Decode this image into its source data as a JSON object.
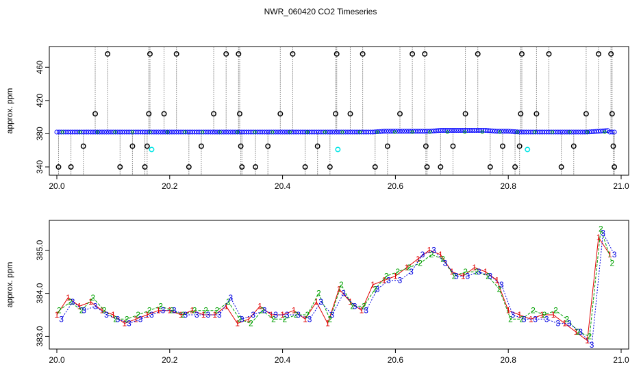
{
  "title": "NWR_060420  CO2 Timeseries",
  "chart_data": [
    {
      "type": "scatter",
      "ylabel": "approx. ppm",
      "xlim": [
        20.0,
        21.0
      ],
      "ylim": [
        335,
        480
      ],
      "xticks": [
        "20.0",
        "20.2",
        "20.4",
        "20.6",
        "20.8",
        "21.0"
      ],
      "yticks": [
        "340",
        "380",
        "420",
        "460"
      ],
      "baseline": 382,
      "series": [
        {
          "color": "#0000ff",
          "marker": "circle",
          "points": [
            [
              20.0,
              382
            ],
            [
              20.02,
              382
            ],
            [
              20.04,
              382
            ],
            [
              20.06,
              382
            ],
            [
              20.08,
              382
            ],
            [
              20.1,
              382
            ],
            [
              20.12,
              382
            ],
            [
              20.14,
              382
            ],
            [
              20.16,
              382
            ],
            [
              20.18,
              382
            ],
            [
              20.2,
              382
            ],
            [
              20.22,
              382
            ],
            [
              20.24,
              382
            ],
            [
              20.26,
              382
            ],
            [
              20.28,
              382
            ],
            [
              20.3,
              382
            ],
            [
              20.32,
              382
            ],
            [
              20.34,
              382
            ],
            [
              20.36,
              382
            ],
            [
              20.38,
              382
            ],
            [
              20.4,
              382
            ],
            [
              20.42,
              382
            ],
            [
              20.44,
              382
            ],
            [
              20.46,
              382
            ],
            [
              20.48,
              382
            ],
            [
              20.5,
              382
            ],
            [
              20.52,
              382
            ],
            [
              20.54,
              382
            ],
            [
              20.56,
              382
            ],
            [
              20.58,
              383
            ],
            [
              20.6,
              383
            ],
            [
              20.62,
              383
            ],
            [
              20.64,
              383
            ],
            [
              20.66,
              383
            ],
            [
              20.68,
              384
            ],
            [
              20.7,
              384
            ],
            [
              20.72,
              384
            ],
            [
              20.74,
              384
            ],
            [
              20.76,
              384
            ],
            [
              20.78,
              383
            ],
            [
              20.8,
              383
            ],
            [
              20.82,
              382
            ],
            [
              20.84,
              382
            ],
            [
              20.86,
              382
            ],
            [
              20.88,
              382
            ],
            [
              20.9,
              382
            ],
            [
              20.92,
              382
            ],
            [
              20.94,
              382
            ],
            [
              20.96,
              383
            ],
            [
              20.98,
              384
            ]
          ]
        },
        {
          "color": "#000000",
          "marker": "circle",
          "points": [
            [
              20.003,
              340
            ],
            [
              20.025,
              340
            ],
            [
              20.047,
              365
            ],
            [
              20.068,
              404
            ],
            [
              20.09,
              476
            ],
            [
              20.112,
              340
            ],
            [
              20.134,
              365
            ],
            [
              20.156,
              340
            ],
            [
              20.16,
              365
            ],
            [
              20.163,
              404
            ],
            [
              20.165,
              476
            ],
            [
              20.19,
              404
            ],
            [
              20.212,
              476
            ],
            [
              20.234,
              340
            ],
            [
              20.256,
              365
            ],
            [
              20.278,
              404
            ],
            [
              20.3,
              476
            ],
            [
              20.322,
              476
            ],
            [
              20.324,
              404
            ],
            [
              20.326,
              365
            ],
            [
              20.328,
              340
            ],
            [
              20.352,
              340
            ],
            [
              20.374,
              365
            ],
            [
              20.396,
              404
            ],
            [
              20.418,
              476
            ],
            [
              20.44,
              340
            ],
            [
              20.462,
              365
            ],
            [
              20.484,
              340
            ],
            [
              20.494,
              404
            ],
            [
              20.496,
              476
            ],
            [
              20.52,
              404
            ],
            [
              20.542,
              476
            ],
            [
              20.564,
              340
            ],
            [
              20.586,
              365
            ],
            [
              20.608,
              404
            ],
            [
              20.63,
              476
            ],
            [
              20.652,
              476
            ],
            [
              20.654,
              365
            ],
            [
              20.656,
              340
            ],
            [
              20.68,
              340
            ],
            [
              20.702,
              365
            ],
            [
              20.724,
              404
            ],
            [
              20.746,
              476
            ],
            [
              20.768,
              340
            ],
            [
              20.79,
              365
            ],
            [
              20.812,
              340
            ],
            [
              20.82,
              365
            ],
            [
              20.822,
              404
            ],
            [
              20.824,
              476
            ],
            [
              20.85,
              404
            ],
            [
              20.872,
              476
            ],
            [
              20.894,
              340
            ],
            [
              20.916,
              365
            ],
            [
              20.938,
              404
            ],
            [
              20.96,
              476
            ],
            [
              20.982,
              476
            ],
            [
              20.984,
              404
            ],
            [
              20.986,
              365
            ],
            [
              20.988,
              340
            ]
          ]
        },
        {
          "color": "#00e5e5",
          "marker": "circle",
          "points": [
            [
              20.168,
              361
            ],
            [
              20.498,
              361
            ],
            [
              20.834,
              361
            ]
          ]
        }
      ]
    },
    {
      "type": "line",
      "ylabel": "approx. ppm",
      "xlim": [
        20.0,
        21.0
      ],
      "ylim": [
        382.8,
        385.6
      ],
      "xticks": [
        "20.0",
        "20.2",
        "20.4",
        "20.6",
        "20.8",
        "21.0"
      ],
      "yticks": [
        "383.0",
        "384.0",
        "385.0"
      ],
      "series": [
        {
          "name": "1",
          "color": "#e00000",
          "x": [
            20.0,
            20.02,
            20.04,
            20.06,
            20.08,
            20.1,
            20.12,
            20.14,
            20.16,
            20.18,
            20.2,
            20.22,
            20.24,
            20.26,
            20.28,
            20.3,
            20.32,
            20.34,
            20.36,
            20.38,
            20.4,
            20.42,
            20.44,
            20.46,
            20.48,
            20.5,
            20.52,
            20.54,
            20.56,
            20.58,
            20.6,
            20.62,
            20.64,
            20.66,
            20.68,
            20.7,
            20.72,
            20.74,
            20.76,
            20.78,
            20.8,
            20.82,
            20.84,
            20.86,
            20.88,
            20.9,
            20.92,
            20.94,
            20.96,
            20.98
          ],
          "values": [
            383.5,
            383.9,
            383.7,
            383.8,
            383.6,
            383.5,
            383.3,
            383.4,
            383.5,
            383.6,
            383.6,
            383.5,
            383.6,
            383.5,
            383.5,
            383.7,
            383.3,
            383.4,
            383.7,
            383.5,
            383.5,
            383.6,
            383.4,
            383.8,
            383.3,
            384.1,
            383.8,
            383.6,
            384.2,
            384.3,
            384.4,
            384.6,
            384.8,
            385.0,
            384.9,
            384.5,
            384.4,
            384.6,
            384.5,
            384.3,
            383.6,
            383.5,
            383.4,
            383.5,
            383.5,
            383.3,
            383.1,
            382.9,
            385.3,
            384.9
          ]
        },
        {
          "name": "2",
          "color": "#00a000",
          "x": [
            20.004,
            20.024,
            20.044,
            20.064,
            20.084,
            20.104,
            20.124,
            20.144,
            20.164,
            20.184,
            20.204,
            20.224,
            20.244,
            20.264,
            20.284,
            20.304,
            20.324,
            20.344,
            20.364,
            20.384,
            20.404,
            20.424,
            20.444,
            20.464,
            20.484,
            20.504,
            20.524,
            20.544,
            20.564,
            20.584,
            20.604,
            20.624,
            20.644,
            20.664,
            20.684,
            20.704,
            20.724,
            20.744,
            20.764,
            20.784,
            20.804,
            20.824,
            20.844,
            20.864,
            20.884,
            20.904,
            20.924,
            20.944,
            20.964,
            20.984
          ],
          "values": [
            383.6,
            383.8,
            383.6,
            383.9,
            383.6,
            383.4,
            383.4,
            383.5,
            383.6,
            383.7,
            383.6,
            383.5,
            383.6,
            383.6,
            383.6,
            383.8,
            383.4,
            383.3,
            383.6,
            383.4,
            383.4,
            383.5,
            383.5,
            384.0,
            383.4,
            384.2,
            383.7,
            383.7,
            384.1,
            384.4,
            384.5,
            384.6,
            384.7,
            384.9,
            384.8,
            384.4,
            384.5,
            384.5,
            384.4,
            384.1,
            383.4,
            383.4,
            383.6,
            383.5,
            383.6,
            383.4,
            383.1,
            383.0,
            385.5,
            384.7
          ]
        },
        {
          "name": "3",
          "color": "#0000e0",
          "x": [
            20.008,
            20.028,
            20.048,
            20.068,
            20.088,
            20.108,
            20.128,
            20.148,
            20.168,
            20.188,
            20.208,
            20.228,
            20.248,
            20.268,
            20.288,
            20.308,
            20.328,
            20.348,
            20.368,
            20.388,
            20.408,
            20.428,
            20.448,
            20.468,
            20.488,
            20.508,
            20.528,
            20.548,
            20.568,
            20.588,
            20.608,
            20.628,
            20.648,
            20.668,
            20.688,
            20.708,
            20.728,
            20.748,
            20.768,
            20.788,
            20.808,
            20.828,
            20.848,
            20.868,
            20.888,
            20.908,
            20.928,
            20.948,
            20.968,
            20.988
          ],
          "values": [
            383.4,
            383.8,
            383.6,
            383.7,
            383.5,
            383.4,
            383.3,
            383.4,
            383.5,
            383.6,
            383.6,
            383.5,
            383.5,
            383.5,
            383.5,
            383.9,
            383.4,
            383.5,
            383.6,
            383.5,
            383.5,
            383.5,
            383.4,
            383.8,
            383.5,
            384.0,
            383.7,
            383.6,
            384.1,
            384.3,
            384.3,
            384.5,
            384.9,
            385.0,
            384.7,
            384.4,
            384.4,
            384.5,
            384.4,
            384.2,
            383.5,
            383.4,
            383.4,
            383.4,
            383.3,
            383.3,
            383.1,
            382.8,
            385.4,
            384.9
          ]
        }
      ]
    }
  ]
}
